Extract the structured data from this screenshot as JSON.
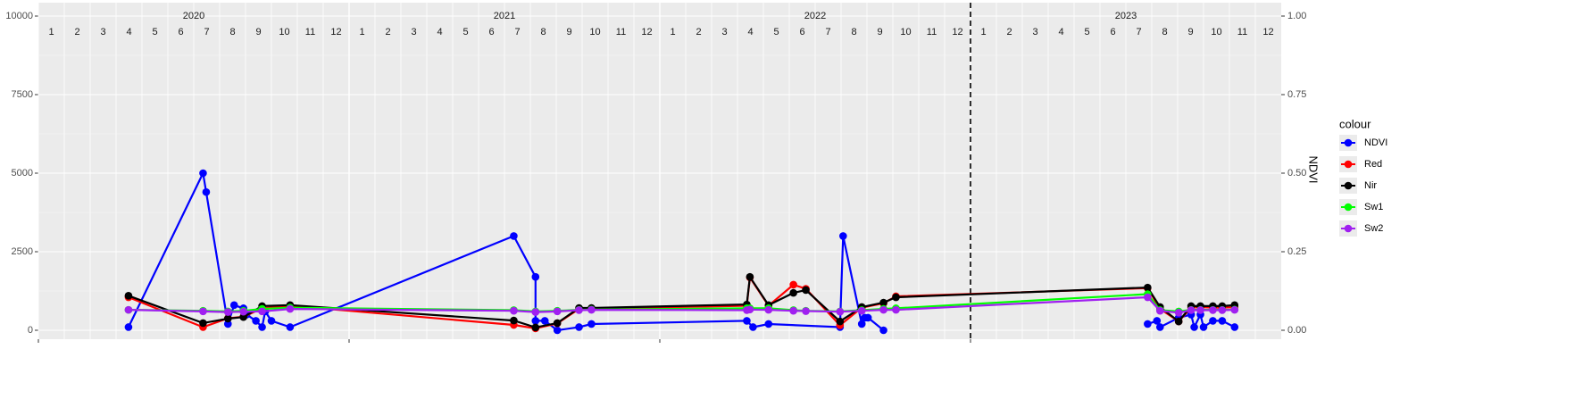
{
  "chart_data": {
    "type": "line",
    "years": [
      "2020",
      "2021",
      "2022",
      "2023"
    ],
    "months": [
      "1",
      "2",
      "3",
      "4",
      "5",
      "6",
      "7",
      "8",
      "9",
      "10",
      "11",
      "12"
    ],
    "xlim": [
      2020,
      2024
    ],
    "xticks": [
      2020,
      2021,
      2022,
      2023
    ],
    "vline": 2023,
    "ylim": [
      0,
      10000
    ],
    "yticks": [
      0,
      2500,
      5000,
      7500,
      10000
    ],
    "y2lim": [
      0,
      1
    ],
    "y2ticks": [
      {
        "value": 0,
        "label": "0.00"
      },
      0.25,
      {
        "value": 0.5,
        "label": "0.50"
      },
      0.75,
      {
        "value": 1,
        "label": "1.00"
      }
    ],
    "y2_label": "NDVI",
    "legend_title": "colour",
    "legend_position": "right",
    "grid": true,
    "series": [
      {
        "name": "NDVI",
        "color": "#0000ff",
        "axis": "y2",
        "x": [
          2020.29,
          2020.53,
          2020.54,
          2020.61,
          2020.63,
          2020.66,
          2020.67,
          2020.7,
          2020.72,
          2020.73,
          2020.75,
          2020.81,
          2021.53,
          2021.6,
          2021.6,
          2021.63,
          2021.67,
          2021.74,
          2021.78,
          2022.28,
          2022.3,
          2022.35,
          2022.58,
          2022.59,
          2022.65,
          2022.66,
          2022.67,
          2022.72,
          null,
          2023.57,
          2023.6,
          2023.61,
          2023.67,
          2023.71,
          2023.72,
          2023.74,
          2023.75,
          2023.78,
          2023.81,
          2023.85
        ],
        "values": [
          0.01,
          0.5,
          0.44,
          0.02,
          0.08,
          0.07,
          0.05,
          0.03,
          0.01,
          0.06,
          0.03,
          0.01,
          0.3,
          0.17,
          0.03,
          0.03,
          0.0,
          0.01,
          0.02,
          0.03,
          0.01,
          0.02,
          0.01,
          0.3,
          0.02,
          0.04,
          0.04,
          0.0,
          null,
          0.02,
          0.03,
          0.01,
          0.04,
          0.05,
          0.01,
          0.05,
          0.01,
          0.03,
          0.03,
          0.01
        ]
      },
      {
        "name": "Red",
        "color": "#ff0000",
        "x": [
          2020.29,
          2020.53,
          2020.61,
          2020.66,
          2020.72,
          2020.81,
          2021.53,
          2021.6,
          2021.67,
          2021.74,
          2021.78,
          2022.28,
          2022.29,
          2022.35,
          2022.43,
          2022.47,
          2022.58,
          2022.65,
          2022.72,
          2022.76,
          2023.57,
          2023.61,
          2023.67,
          2023.71,
          2023.74,
          2023.78,
          2023.81,
          2023.85
        ],
        "values": [
          1050,
          100,
          380,
          430,
          700,
          780,
          170,
          60,
          220,
          680,
          690,
          780,
          1680,
          780,
          1450,
          1320,
          160,
          720,
          860,
          1080,
          1340,
          680,
          280,
          720,
          740,
          720,
          720,
          740
        ]
      },
      {
        "name": "Nir",
        "color": "#000000",
        "x": [
          2020.29,
          2020.53,
          2020.61,
          2020.66,
          2020.72,
          2020.81,
          2021.53,
          2021.6,
          2021.67,
          2021.74,
          2021.78,
          2022.28,
          2022.29,
          2022.35,
          2022.43,
          2022.47,
          2022.58,
          2022.65,
          2022.72,
          2022.76,
          2023.57,
          2023.61,
          2023.67,
          2023.71,
          2023.74,
          2023.78,
          2023.81,
          2023.85
        ],
        "values": [
          1100,
          230,
          370,
          420,
          770,
          800,
          310,
          90,
          230,
          710,
          710,
          820,
          1700,
          800,
          1190,
          1280,
          280,
          740,
          880,
          1050,
          1360,
          740,
          280,
          770,
          770,
          770,
          770,
          800
        ]
      },
      {
        "name": "Sw1",
        "color": "#00ff00",
        "x": [
          2020.29,
          2020.53,
          2020.61,
          2020.66,
          2020.72,
          2020.81,
          2021.53,
          2021.6,
          2021.67,
          2021.74,
          2021.78,
          2022.28,
          2022.29,
          2022.35,
          2022.43,
          2022.47,
          2022.58,
          2022.65,
          2022.72,
          2022.76,
          2023.57,
          2023.61,
          2023.67,
          2023.71,
          2023.74,
          2023.78,
          2023.81,
          2023.85
        ],
        "values": [
          650,
          620,
          600,
          620,
          680,
          720,
          640,
          600,
          620,
          650,
          660,
          700,
          700,
          700,
          640,
          620,
          600,
          640,
          680,
          700,
          1150,
          640,
          600,
          650,
          650,
          650,
          650,
          660
        ]
      },
      {
        "name": "Sw2",
        "color": "#a020f0",
        "x": [
          2020.29,
          2020.53,
          2020.61,
          2020.66,
          2020.72,
          2020.81,
          2021.53,
          2021.6,
          2021.67,
          2021.74,
          2021.78,
          2022.28,
          2022.29,
          2022.35,
          2022.43,
          2022.47,
          2022.58,
          2022.65,
          2022.72,
          2022.76,
          2023.57,
          2023.61,
          2023.67,
          2023.71,
          2023.74,
          2023.78,
          2023.81,
          2023.85
        ],
        "values": [
          650,
          600,
          580,
          590,
          600,
          680,
          620,
          580,
          600,
          640,
          650,
          640,
          660,
          650,
          620,
          610,
          590,
          620,
          650,
          650,
          1050,
          620,
          560,
          640,
          640,
          640,
          640,
          650
        ]
      }
    ]
  }
}
